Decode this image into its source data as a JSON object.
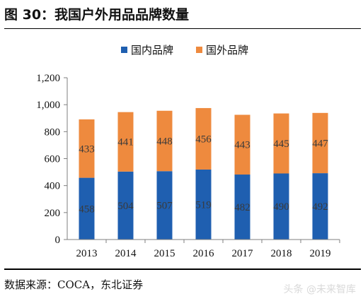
{
  "figure": {
    "title": "图 30：我国户外用品品牌数量",
    "source": "数据来源：COCA，东北证券",
    "watermark": "头条 @未来智库"
  },
  "chart_data": {
    "type": "bar",
    "stacked": true,
    "title": "",
    "xlabel": "",
    "ylabel": "",
    "categories": [
      "2013",
      "2014",
      "2015",
      "2016",
      "2017",
      "2018",
      "2019"
    ],
    "series": [
      {
        "name": "国内品牌",
        "color": "#1f5fb0",
        "values": [
          458,
          504,
          507,
          519,
          482,
          490,
          492
        ]
      },
      {
        "name": "国外品牌",
        "color": "#ee8a3e",
        "values": [
          433,
          441,
          448,
          456,
          443,
          445,
          447
        ]
      }
    ],
    "ylim": [
      0,
      1200
    ],
    "yticks": [
      0,
      200,
      400,
      600,
      800,
      1000,
      1200
    ],
    "ytick_labels": [
      "0",
      "200",
      "400",
      "600",
      "800",
      "1,000",
      "1,200"
    ],
    "legend_position": "top-center",
    "data_labels": true,
    "grid": false
  }
}
